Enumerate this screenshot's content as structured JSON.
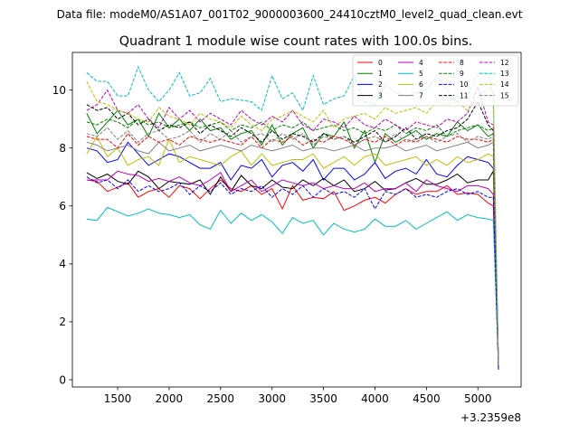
{
  "figure": {
    "suptitle": "Data file: modeM0/AS1A07_001T02_9000003600_24410cztM0_level2_quad_clean.evt"
  },
  "chart_data": {
    "type": "line",
    "title": "Quadrant 1 module wise count rates with 100.0s bins.",
    "xlabel": "",
    "ylabel": "",
    "x_offset_label": "+3.2359e8",
    "xlim": [
      1060,
      5420
    ],
    "ylim": [
      -0.25,
      11.3
    ],
    "xticks": [
      1500,
      2000,
      2500,
      3000,
      3500,
      4000,
      4500,
      5000
    ],
    "yticks": [
      0,
      2,
      4,
      6,
      8,
      10
    ],
    "grid": false,
    "legend_position": "top-right",
    "legend_columns": 4,
    "x": [
      1200,
      1300,
      1400,
      1500,
      1600,
      1700,
      1800,
      1900,
      2000,
      2100,
      2200,
      2300,
      2400,
      2500,
      2600,
      2700,
      2800,
      2900,
      3000,
      3100,
      3200,
      3300,
      3400,
      3500,
      3600,
      3700,
      3800,
      3900,
      4000,
      4100,
      4200,
      4300,
      4400,
      4500,
      4600,
      4700,
      4800,
      4900,
      5000,
      5100,
      5150,
      5200
    ],
    "series": [
      {
        "name": "0",
        "color": "#ff0000",
        "dash": "solid",
        "values": [
          6.9,
          6.85,
          6.5,
          6.65,
          6.8,
          6.3,
          6.5,
          6.6,
          6.3,
          6.7,
          6.6,
          6.25,
          6.6,
          6.9,
          6.6,
          6.5,
          6.7,
          6.4,
          6.6,
          5.9,
          6.7,
          6.2,
          6.3,
          6.25,
          6.5,
          5.85,
          6.0,
          6.2,
          6.3,
          6.1,
          6.4,
          6.6,
          6.4,
          6.5,
          6.5,
          6.7,
          6.4,
          6.45,
          6.4,
          6.1,
          6.0,
          0.45
        ]
      },
      {
        "name": "1",
        "color": "#008000",
        "dash": "solid",
        "values": [
          9.2,
          8.5,
          8.9,
          9.3,
          8.8,
          9.0,
          8.4,
          9.2,
          8.7,
          9.0,
          8.6,
          9.0,
          8.6,
          8.7,
          8.3,
          8.5,
          8.6,
          8.1,
          8.8,
          8.1,
          8.5,
          8.7,
          8.0,
          8.5,
          8.4,
          8.9,
          8.0,
          8.6,
          7.5,
          8.5,
          8.2,
          8.4,
          8.6,
          8.3,
          8.5,
          8.4,
          8.9,
          8.6,
          8.8,
          8.4,
          8.5,
          0.6
        ]
      },
      {
        "name": "2",
        "color": "#0000ff",
        "dash": "solid",
        "values": [
          8.0,
          7.9,
          7.5,
          7.6,
          8.2,
          7.8,
          7.4,
          7.6,
          7.8,
          7.7,
          7.5,
          7.3,
          7.3,
          7.5,
          6.9,
          7.4,
          7.3,
          7.6,
          7.0,
          7.4,
          7.5,
          7.2,
          7.6,
          6.9,
          7.3,
          7.3,
          6.9,
          7.1,
          7.5,
          6.95,
          7.2,
          7.3,
          7.1,
          7.6,
          7.1,
          7.0,
          7.4,
          7.7,
          7.6,
          7.5,
          7.3,
          0.5
        ]
      },
      {
        "name": "3",
        "color": "#000000",
        "dash": "solid",
        "values": [
          7.15,
          6.95,
          7.1,
          6.85,
          6.75,
          7.2,
          7.0,
          6.6,
          6.85,
          6.8,
          6.75,
          6.9,
          6.4,
          7.0,
          6.5,
          7.05,
          6.7,
          6.6,
          6.9,
          6.65,
          6.6,
          6.9,
          6.7,
          6.95,
          6.7,
          6.9,
          6.5,
          6.6,
          6.85,
          6.55,
          6.6,
          6.8,
          6.95,
          6.75,
          6.75,
          6.9,
          7.1,
          6.8,
          6.9,
          6.9,
          7.2,
          0.35
        ]
      },
      {
        "name": "4",
        "color": "#bf00bf",
        "dash": "solid",
        "values": [
          6.9,
          6.9,
          6.9,
          7.2,
          7.1,
          7.05,
          6.85,
          6.95,
          6.85,
          7.0,
          6.8,
          6.7,
          6.9,
          7.15,
          6.5,
          6.7,
          6.9,
          6.5,
          6.7,
          6.9,
          6.8,
          6.7,
          6.8,
          6.6,
          6.7,
          6.6,
          6.6,
          6.8,
          6.5,
          6.6,
          6.6,
          6.8,
          6.5,
          6.9,
          6.7,
          6.6,
          6.5,
          6.7,
          6.7,
          6.6,
          6.4,
          0.5
        ]
      },
      {
        "name": "5",
        "color": "#00bfbf",
        "dash": "solid",
        "values": [
          5.55,
          5.5,
          5.95,
          5.8,
          5.65,
          5.75,
          5.9,
          5.75,
          5.7,
          5.6,
          5.7,
          5.35,
          5.2,
          5.85,
          5.4,
          5.75,
          5.5,
          5.7,
          5.45,
          5.05,
          5.6,
          5.4,
          5.5,
          5.0,
          5.4,
          5.2,
          5.1,
          5.2,
          5.55,
          5.3,
          5.3,
          5.5,
          5.2,
          5.4,
          5.6,
          5.8,
          5.5,
          5.7,
          5.6,
          5.55,
          5.5,
          0.5
        ]
      },
      {
        "name": "6",
        "color": "#bfbf00",
        "dash": "solid",
        "values": [
          7.8,
          8.4,
          7.7,
          8.0,
          7.4,
          7.6,
          7.7,
          7.4,
          8.3,
          7.5,
          7.7,
          7.6,
          7.5,
          7.4,
          7.7,
          7.9,
          7.4,
          7.8,
          7.4,
          7.5,
          7.6,
          7.6,
          7.8,
          7.3,
          7.5,
          7.7,
          7.4,
          7.7,
          7.8,
          7.4,
          7.5,
          7.6,
          7.7,
          7.4,
          7.6,
          7.4,
          7.7,
          7.5,
          7.6,
          7.8,
          7.7,
          0.4
        ]
      },
      {
        "name": "7",
        "color": "#808080",
        "dash": "solid",
        "values": [
          8.2,
          8.1,
          7.9,
          8.0,
          8.1,
          7.9,
          7.8,
          8.2,
          7.9,
          8.0,
          8.1,
          7.9,
          8.0,
          8.1,
          8.0,
          7.9,
          8.1,
          8.0,
          7.9,
          8.0,
          8.1,
          7.9,
          8.0,
          8.0,
          7.9,
          8.0,
          8.1,
          7.9,
          8.0,
          8.0,
          8.1,
          7.9,
          8.0,
          8.1,
          7.9,
          8.0,
          8.1,
          8.2,
          8.0,
          8.1,
          8.2,
          0.5
        ]
      },
      {
        "name": "8",
        "color": "#ff0000",
        "dash": "dashed",
        "values": [
          8.4,
          8.3,
          8.3,
          8.0,
          8.5,
          8.1,
          8.4,
          8.2,
          8.3,
          8.1,
          8.4,
          8.3,
          8.2,
          8.3,
          8.2,
          8.1,
          8.4,
          8.0,
          8.3,
          8.2,
          8.4,
          8.1,
          8.3,
          8.2,
          8.4,
          8.3,
          8.1,
          8.3,
          8.2,
          8.4,
          8.1,
          8.3,
          8.2,
          8.4,
          8.3,
          8.2,
          8.4,
          8.3,
          8.3,
          8.2,
          8.3,
          0.5
        ]
      },
      {
        "name": "9",
        "color": "#008000",
        "dash": "dashed",
        "values": [
          8.9,
          8.8,
          9.0,
          8.9,
          8.7,
          9.0,
          8.8,
          8.9,
          8.7,
          8.8,
          8.9,
          8.7,
          8.8,
          8.9,
          8.6,
          8.8,
          8.7,
          8.9,
          8.6,
          8.8,
          8.7,
          8.9,
          8.6,
          8.7,
          8.8,
          8.6,
          8.7,
          8.5,
          8.7,
          8.6,
          8.8,
          8.5,
          8.7,
          8.6,
          8.8,
          8.4,
          8.6,
          8.7,
          8.8,
          8.6,
          8.7,
          0.5
        ]
      },
      {
        "name": "10",
        "color": "#0000ff",
        "dash": "dashed",
        "values": [
          7.0,
          6.8,
          6.9,
          6.6,
          6.9,
          6.5,
          6.7,
          6.5,
          6.6,
          6.8,
          6.4,
          6.7,
          6.5,
          6.8,
          6.4,
          6.6,
          6.5,
          6.7,
          6.3,
          6.6,
          6.4,
          6.7,
          6.3,
          6.6,
          6.4,
          6.5,
          6.3,
          6.6,
          5.9,
          6.5,
          6.4,
          6.6,
          6.3,
          6.4,
          6.3,
          6.5,
          6.6,
          6.4,
          6.5,
          6.3,
          6.3,
          0.4
        ]
      },
      {
        "name": "11",
        "color": "#000000",
        "dash": "dashed",
        "values": [
          9.5,
          9.3,
          9.4,
          9.0,
          9.2,
          8.8,
          9.0,
          8.6,
          8.8,
          8.7,
          8.9,
          8.5,
          8.8,
          8.6,
          8.4,
          8.7,
          8.5,
          8.2,
          8.6,
          8.3,
          8.5,
          8.4,
          8.2,
          8.5,
          8.3,
          8.4,
          8.2,
          8.4,
          8.6,
          8.2,
          8.4,
          8.7,
          8.3,
          8.5,
          8.4,
          8.6,
          8.7,
          9.0,
          9.6,
          8.8,
          8.6,
          0.5
        ]
      },
      {
        "name": "12",
        "color": "#bf00bf",
        "dash": "dashed",
        "values": [
          9.3,
          9.5,
          10.0,
          9.3,
          9.2,
          9.5,
          9.0,
          8.7,
          9.4,
          9.0,
          9.3,
          8.9,
          9.2,
          9.0,
          8.8,
          9.3,
          9.0,
          8.8,
          9.1,
          8.9,
          9.3,
          8.8,
          8.6,
          9.0,
          8.9,
          8.7,
          9.1,
          8.8,
          8.7,
          9.0,
          8.8,
          8.6,
          8.9,
          8.8,
          8.7,
          9.0,
          8.9,
          9.2,
          10.1,
          8.9,
          8.8,
          0.5
        ]
      },
      {
        "name": "13",
        "color": "#00bfbf",
        "dash": "dashed",
        "values": [
          10.6,
          10.3,
          10.3,
          9.8,
          9.8,
          10.8,
          10.0,
          9.6,
          10.0,
          10.6,
          9.8,
          9.9,
          10.4,
          9.6,
          9.7,
          9.65,
          9.6,
          9.3,
          10.5,
          9.7,
          9.9,
          9.3,
          10.5,
          9.5,
          9.7,
          9.8,
          10.5,
          9.6,
          9.5,
          10.2,
          9.9,
          9.8,
          9.9,
          10.0,
          10.5,
          10.0,
          9.6,
          9.8,
          10.6,
          10.6,
          9.8,
          0.5
        ]
      },
      {
        "name": "14",
        "color": "#bfbf00",
        "dash": "dashed",
        "values": [
          10.3,
          9.6,
          9.5,
          9.3,
          9.2,
          9.0,
          8.9,
          9.4,
          9.1,
          9.0,
          8.8,
          9.2,
          9.0,
          8.9,
          8.7,
          9.1,
          8.8,
          8.6,
          9.0,
          9.1,
          9.3,
          9.1,
          8.9,
          9.3,
          8.7,
          9.0,
          9.1,
          9.2,
          9.0,
          9.4,
          9.2,
          9.3,
          9.4,
          9.2,
          9.6,
          9.5,
          9.6,
          9.3,
          9.8,
          10.1,
          9.9,
          0.5
        ]
      },
      {
        "name": "15",
        "color": "#808080",
        "dash": "dashed",
        "values": [
          8.5,
          8.4,
          8.7,
          8.3,
          8.6,
          8.2,
          8.5,
          8.6,
          8.3,
          8.4,
          8.6,
          8.2,
          8.5,
          8.3,
          8.6,
          8.2,
          8.4,
          8.5,
          8.2,
          8.5,
          8.3,
          8.5,
          8.1,
          8.4,
          8.3,
          8.4,
          8.1,
          8.3,
          8.4,
          8.2,
          8.5,
          8.2,
          8.3,
          8.4,
          8.2,
          8.4,
          8.5,
          8.2,
          8.4,
          8.3,
          8.4,
          0.5
        ]
      }
    ]
  }
}
